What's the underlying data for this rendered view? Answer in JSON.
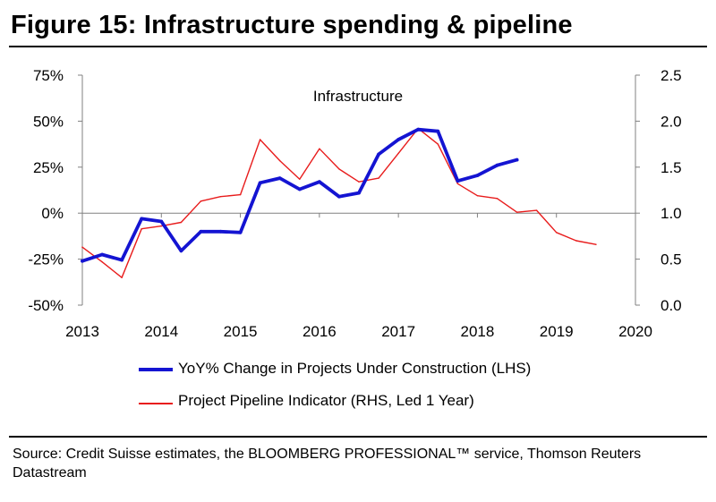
{
  "figure": {
    "title": "Figure 15: Infrastructure spending & pipeline",
    "source": "Source: Credit Suisse estimates, the BLOOMBERG PROFESSIONAL™ service, Thomson Reuters Datastream"
  },
  "colors": {
    "lhs_series": "#1414d2",
    "rhs_series": "#e81c1c",
    "axis": "#808080",
    "text": "#000000"
  },
  "chart_data": {
    "type": "line",
    "title": "Infrastructure",
    "grid": false,
    "legend_position": "bottom",
    "x_ticks": [
      "2013",
      "2014",
      "2015",
      "2016",
      "2017",
      "2018",
      "2019",
      "2020"
    ],
    "x_range": [
      2013,
      2020
    ],
    "y_left": {
      "range": [
        -0.5,
        0.75
      ],
      "ticks": [
        -0.5,
        -0.25,
        0,
        0.25,
        0.5,
        0.75
      ],
      "tick_labels": [
        "-50%",
        "-25%",
        "0%",
        "25%",
        "50%",
        "75%"
      ]
    },
    "y_right": {
      "range": [
        0.0,
        2.5
      ],
      "ticks": [
        0.0,
        0.5,
        1.0,
        1.5,
        2.0,
        2.5
      ],
      "tick_labels": [
        "0.0",
        "0.5",
        "1.0",
        "1.5",
        "2.0",
        "2.5"
      ]
    },
    "series": [
      {
        "name": "YoY% Change in Projects Under Construction (LHS)",
        "axis": "left",
        "x": [
          2013.0,
          2013.25,
          2013.5,
          2013.75,
          2014.0,
          2014.25,
          2014.5,
          2014.75,
          2015.0,
          2015.25,
          2015.5,
          2015.75,
          2016.0,
          2016.25,
          2016.5,
          2016.75,
          2017.0,
          2017.25,
          2017.5,
          2017.75,
          2018.0,
          2018.25,
          2018.5
        ],
        "y": [
          -0.26,
          -0.225,
          -0.255,
          -0.03,
          -0.045,
          -0.205,
          -0.1,
          -0.1,
          -0.105,
          0.165,
          0.19,
          0.13,
          0.17,
          0.09,
          0.11,
          0.32,
          0.4,
          0.455,
          0.445,
          0.175,
          0.205,
          0.26,
          0.29
        ]
      },
      {
        "name": "Project Pipeline Indicator (RHS, Led 1 Year)",
        "axis": "right",
        "x": [
          2013.0,
          2013.25,
          2013.5,
          2013.75,
          2014.0,
          2014.25,
          2014.5,
          2014.75,
          2015.0,
          2015.25,
          2015.5,
          2015.75,
          2016.0,
          2016.25,
          2016.5,
          2016.75,
          2017.0,
          2017.25,
          2017.5,
          2017.75,
          2018.0,
          2018.25,
          2018.5,
          2018.75,
          2019.0,
          2019.25,
          2019.5
        ],
        "y": [
          0.63,
          0.47,
          0.3,
          0.83,
          0.86,
          0.9,
          1.13,
          1.18,
          1.2,
          1.8,
          1.57,
          1.37,
          1.7,
          1.48,
          1.34,
          1.38,
          1.65,
          1.92,
          1.75,
          1.32,
          1.19,
          1.16,
          1.01,
          1.03,
          0.79,
          0.7,
          0.66
        ]
      }
    ]
  }
}
